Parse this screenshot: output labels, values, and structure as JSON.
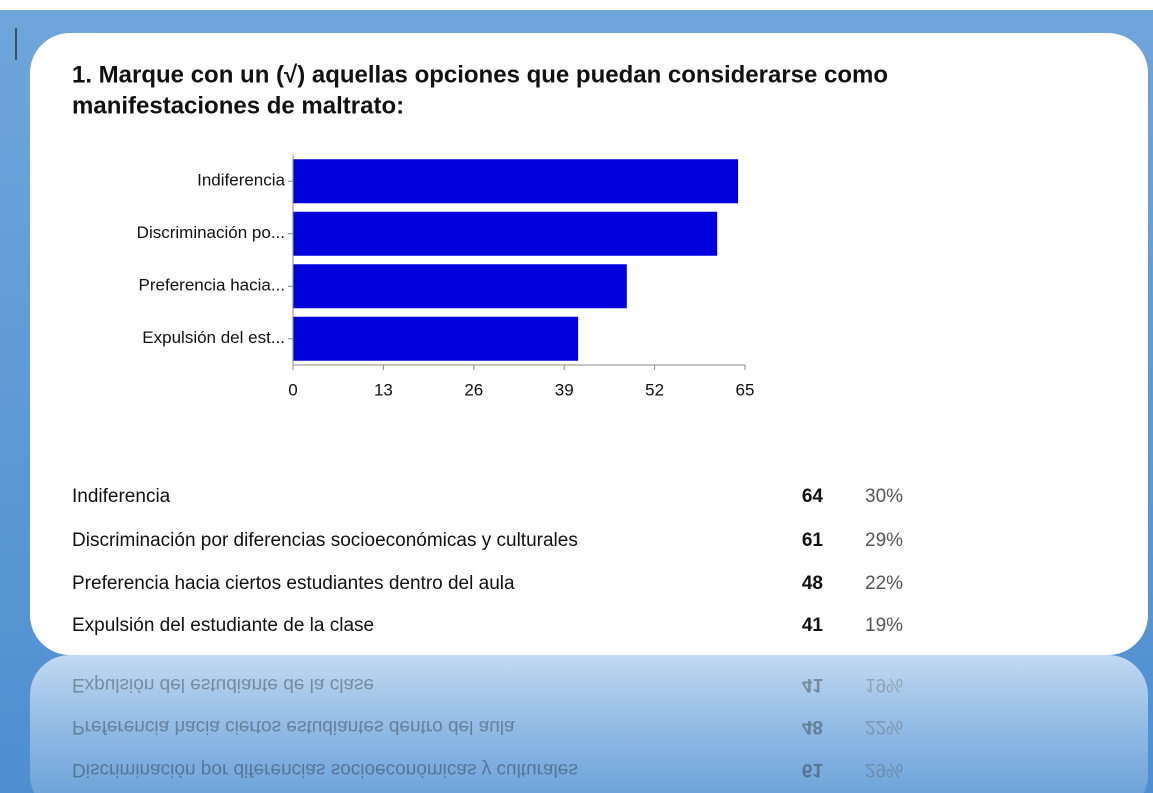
{
  "chart_data": {
    "type": "bar",
    "orientation": "horizontal",
    "title": "1. Marque con un (√) aquellas opciones que puedan considerarse como manifestaciones de maltrato:",
    "categories": [
      "Indiferencia",
      "Discriminación po...",
      "Preferencia hacia...",
      "Expulsión del est..."
    ],
    "values": [
      64,
      61,
      48,
      41
    ],
    "color": "#0000dd",
    "xlim": [
      0,
      65
    ],
    "xticks": [
      0,
      13,
      26,
      39,
      52,
      65
    ]
  },
  "table": {
    "rows": [
      [
        "Indiferencia",
        64,
        "30%"
      ],
      [
        "Discriminación por diferencias socioeconómicas y culturales",
        61,
        "29%"
      ],
      [
        "Preferencia hacia ciertos estudiantes dentro del aula",
        48,
        "22%"
      ],
      [
        "Expulsión del estudiante de la clase",
        41,
        "19%"
      ]
    ]
  }
}
